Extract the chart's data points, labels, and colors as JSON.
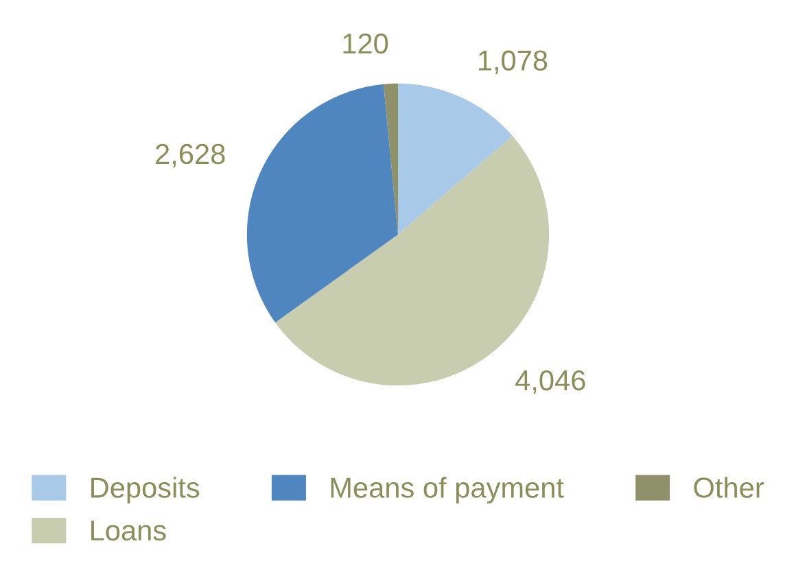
{
  "chart_data": {
    "type": "pie",
    "categories": [
      "Deposits",
      "Loans",
      "Means of payment",
      "Other"
    ],
    "values": [
      1078,
      4046,
      2628,
      120
    ],
    "value_labels": [
      "1,078",
      "4,046",
      "2,628",
      "120"
    ],
    "colors": [
      "#a9c9e8",
      "#c8cdb0",
      "#4f86c0",
      "#8f916a"
    ],
    "legend": "bottom"
  }
}
